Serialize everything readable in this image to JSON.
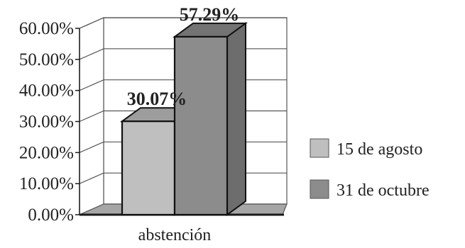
{
  "chart_data": {
    "type": "bar",
    "categories": [
      "abstención"
    ],
    "series": [
      {
        "name": "15 de agosto",
        "values": [
          30.07
        ],
        "color": "#bfbfbf",
        "data_label": "30.07%"
      },
      {
        "name": "31 de octubre",
        "values": [
          57.29
        ],
        "color": "#8c8c8c",
        "data_label": "57.29%"
      }
    ],
    "y_ticks": [
      "0.00%",
      "10.00%",
      "20.00%",
      "30.00%",
      "40.00%",
      "50.00%",
      "60.00%"
    ],
    "ylim": [
      0,
      60
    ],
    "grid": true,
    "three_d": true,
    "legend_position": "right",
    "colors": {
      "wall": "#ffffff",
      "grid": "#555555",
      "floor": "#a6a6a6",
      "axis": "#1a1a1a"
    }
  }
}
